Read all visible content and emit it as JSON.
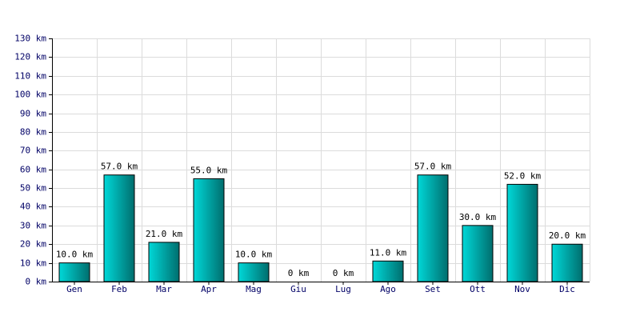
{
  "chart_data": {
    "type": "bar",
    "categories": [
      "Gen",
      "Feb",
      "Mar",
      "Apr",
      "Mag",
      "Giu",
      "Lug",
      "Ago",
      "Set",
      "Ott",
      "Nov",
      "Dic"
    ],
    "values": [
      10,
      57,
      21,
      55,
      10,
      0,
      0,
      11,
      57,
      30,
      52,
      20
    ],
    "value_labels": [
      "10.0 km",
      "57.0 km",
      "21.0 km",
      "55.0 km",
      "10.0 km",
      "0 km",
      "0 km",
      "11.0 km",
      "57.0 km",
      "30.0 km",
      "52.0 km",
      "20.0 km"
    ],
    "color": "#00d8d8",
    "ylim": [
      0,
      130
    ],
    "yticks": [
      {
        "value": 0,
        "label": "0 km"
      },
      {
        "value": 10,
        "label": "10 km"
      },
      {
        "value": 20,
        "label": "20 km"
      },
      {
        "value": 30,
        "label": "30 km"
      },
      {
        "value": 40,
        "label": "40 km"
      },
      {
        "value": 50,
        "label": "50 km"
      },
      {
        "value": 60,
        "label": "60 km"
      },
      {
        "value": 70,
        "label": "70 km"
      },
      {
        "value": 80,
        "label": "80 km"
      },
      {
        "value": 90,
        "label": "90 km"
      },
      {
        "value": 100,
        "label": "100 km"
      },
      {
        "value": 110,
        "label": "110 km"
      },
      {
        "value": 120,
        "label": "120 km"
      },
      {
        "value": 130,
        "label": "130 km"
      }
    ],
    "grid": true
  }
}
